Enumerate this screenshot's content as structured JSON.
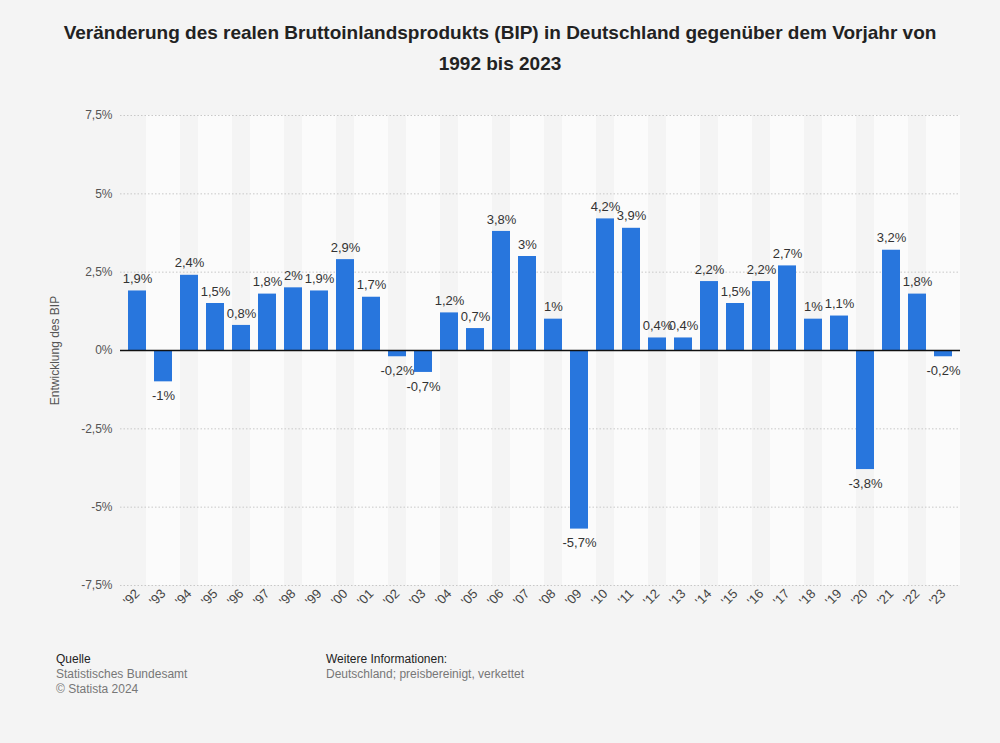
{
  "chart_data": {
    "type": "bar",
    "title": "Veränderung des realen Bruttoinlandsprodukts (BIP) in Deutschland gegenüber dem Vorjahr von 1992 bis 2023",
    "y_label": "Entwicklung des BIP",
    "categories": [
      "'92",
      "'93",
      "'94",
      "'95",
      "'96",
      "'97",
      "'98",
      "'99",
      "'00",
      "'01",
      "'02",
      "'03",
      "'04",
      "'05",
      "'06",
      "'07",
      "'08",
      "'09",
      "'10",
      "'11",
      "'12",
      "'13",
      "'14",
      "'15",
      "'16",
      "'17",
      "'18",
      "'19",
      "'20",
      "'21",
      "'22",
      "'23"
    ],
    "values": [
      1.9,
      -1,
      2.4,
      1.5,
      0.8,
      1.8,
      2,
      1.9,
      2.9,
      1.7,
      -0.2,
      -0.7,
      1.2,
      0.7,
      3.8,
      3,
      1,
      -5.7,
      4.2,
      3.9,
      0.4,
      0.4,
      2.2,
      1.5,
      2.2,
      2.7,
      1,
      1.1,
      -3.8,
      3.2,
      1.8,
      -0.2
    ],
    "value_labels": [
      "1,9%",
      "-1%",
      "2,4%",
      "1,5%",
      "0,8%",
      "1,8%",
      "2%",
      "1,9%",
      "2,9%",
      "1,7%",
      "-0,2%",
      "-0,7%",
      "1,2%",
      "0,7%",
      "3,8%",
      "3%",
      "1%",
      "-5,7%",
      "4,2%",
      "3,9%",
      "0,4%",
      "0,4%",
      "2,2%",
      "1,5%",
      "2,2%",
      "2,7%",
      "1%",
      "1,1%",
      "-3,8%",
      "3,2%",
      "1,8%",
      "-0,2%"
    ],
    "color": "#2876dd",
    "ylim": [
      -7.5,
      7.5
    ],
    "yticks": [
      {
        "value": -7.5,
        "label": "-7,5%"
      },
      {
        "value": -5,
        "label": "-5%"
      },
      {
        "value": -2.5,
        "label": "-2,5%"
      },
      {
        "value": 0,
        "label": "0%"
      },
      {
        "value": 2.5,
        "label": "2,5%"
      },
      {
        "value": 5,
        "label": "5%"
      },
      {
        "value": 7.5,
        "label": "7,5%"
      }
    ],
    "grid": true,
    "data_labels": true,
    "source_heading": "Quelle",
    "source": "Statistisches Bundesamt",
    "copyright": "© Statista 2024",
    "info_heading": "Weitere Informationen:",
    "info": "Deutschland; preisbereinigt, verkettet"
  }
}
